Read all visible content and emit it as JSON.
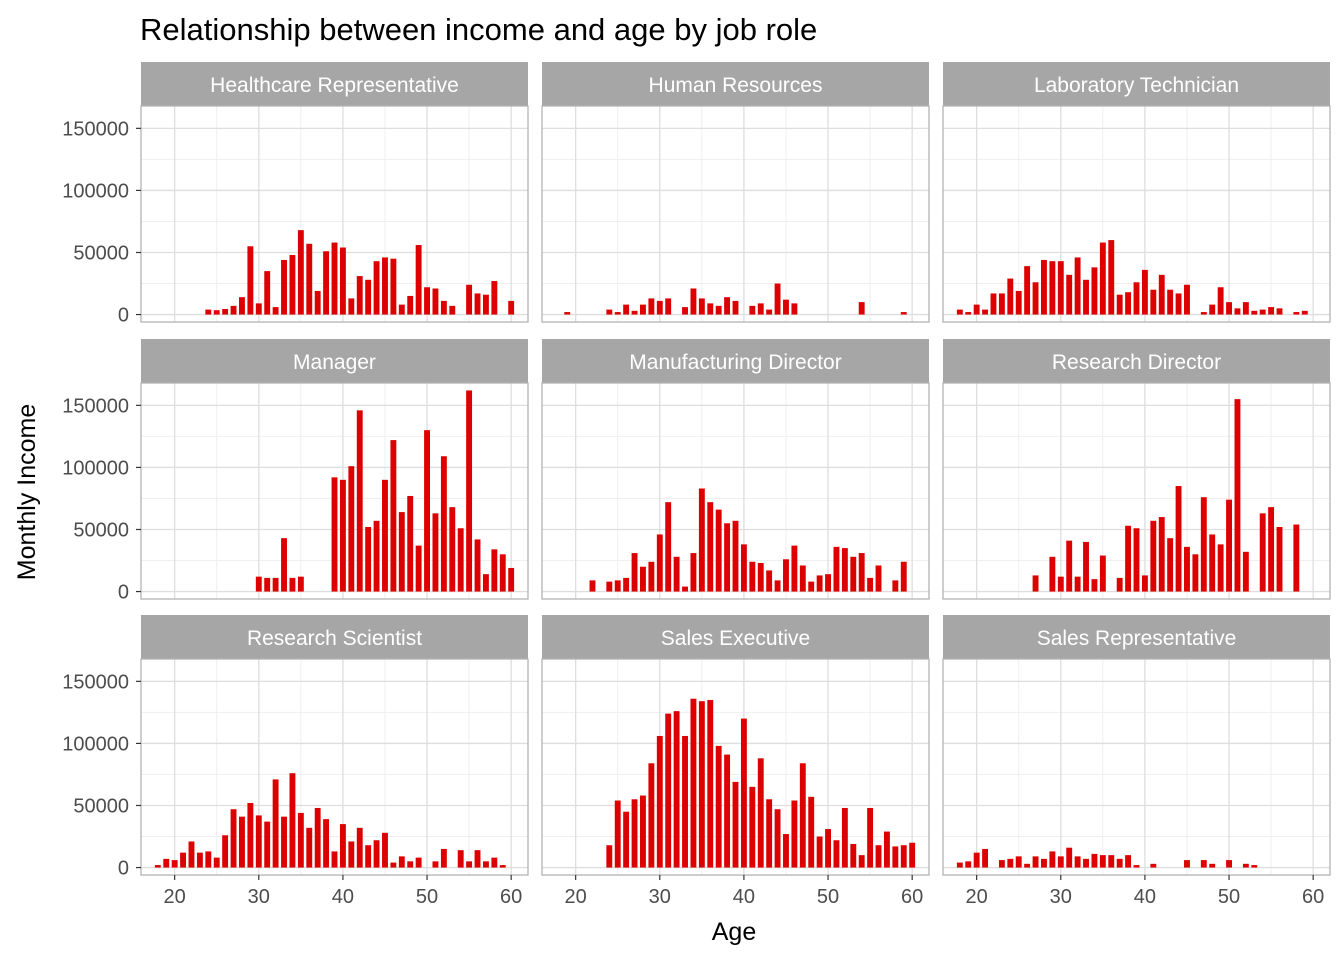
{
  "chart_data": {
    "type": "bar",
    "title": "Relationship between income and age by job role",
    "xlabel": "Age",
    "ylabel": "Monthly Income",
    "xlim": [
      16,
      62
    ],
    "ylim": [
      -6000,
      168000
    ],
    "x_ticks": [
      20,
      30,
      40,
      50,
      60
    ],
    "y_ticks": [
      0,
      50000,
      100000,
      150000
    ],
    "grid": true,
    "facet_layout": {
      "rows": 3,
      "cols": 3,
      "shared_axes": true
    },
    "colors": {
      "bar": "#dd0000",
      "strip": "#a6a6a6",
      "strip_text": "#ffffff",
      "grid_major": "#dedede",
      "grid_minor": "#efefef",
      "panel_border": "#b3b3b3"
    },
    "panels": [
      {
        "name": "Healthcare Representative",
        "points": [
          [
            24,
            4000
          ],
          [
            25,
            3500
          ],
          [
            26,
            4500
          ],
          [
            27,
            7000
          ],
          [
            28,
            14000
          ],
          [
            29,
            55000
          ],
          [
            30,
            9000
          ],
          [
            31,
            35000
          ],
          [
            32,
            6000
          ],
          [
            33,
            44000
          ],
          [
            34,
            48000
          ],
          [
            35,
            68000
          ],
          [
            36,
            57000
          ],
          [
            37,
            19000
          ],
          [
            38,
            51000
          ],
          [
            39,
            58000
          ],
          [
            40,
            54000
          ],
          [
            41,
            13000
          ],
          [
            42,
            31000
          ],
          [
            43,
            28000
          ],
          [
            44,
            43000
          ],
          [
            45,
            46000
          ],
          [
            46,
            45000
          ],
          [
            47,
            8000
          ],
          [
            48,
            15000
          ],
          [
            49,
            56000
          ],
          [
            50,
            22000
          ],
          [
            51,
            21000
          ],
          [
            52,
            11000
          ],
          [
            53,
            7000
          ],
          [
            55,
            24000
          ],
          [
            56,
            17000
          ],
          [
            57,
            16000
          ],
          [
            58,
            27000
          ],
          [
            60,
            11000
          ]
        ]
      },
      {
        "name": "Human Resources",
        "points": [
          [
            19,
            2000
          ],
          [
            24,
            4000
          ],
          [
            25,
            2000
          ],
          [
            26,
            8000
          ],
          [
            27,
            3000
          ],
          [
            28,
            8000
          ],
          [
            29,
            13000
          ],
          [
            30,
            11000
          ],
          [
            31,
            13000
          ],
          [
            33,
            6000
          ],
          [
            34,
            21000
          ],
          [
            35,
            13000
          ],
          [
            36,
            9000
          ],
          [
            37,
            7000
          ],
          [
            38,
            14000
          ],
          [
            39,
            11000
          ],
          [
            41,
            7000
          ],
          [
            42,
            9000
          ],
          [
            43,
            4000
          ],
          [
            44,
            25000
          ],
          [
            45,
            12000
          ],
          [
            46,
            9000
          ],
          [
            54,
            10000
          ],
          [
            59,
            2000
          ]
        ]
      },
      {
        "name": "Laboratory Technician",
        "points": [
          [
            18,
            4000
          ],
          [
            19,
            2000
          ],
          [
            20,
            8000
          ],
          [
            21,
            4000
          ],
          [
            22,
            17000
          ],
          [
            23,
            17000
          ],
          [
            24,
            29000
          ],
          [
            25,
            19000
          ],
          [
            26,
            39000
          ],
          [
            27,
            26000
          ],
          [
            28,
            44000
          ],
          [
            29,
            43000
          ],
          [
            30,
            43000
          ],
          [
            31,
            32000
          ],
          [
            32,
            46000
          ],
          [
            33,
            28000
          ],
          [
            34,
            38000
          ],
          [
            35,
            58000
          ],
          [
            36,
            60000
          ],
          [
            37,
            16000
          ],
          [
            38,
            18000
          ],
          [
            39,
            26000
          ],
          [
            40,
            36000
          ],
          [
            41,
            20000
          ],
          [
            42,
            32000
          ],
          [
            43,
            20000
          ],
          [
            44,
            17000
          ],
          [
            45,
            24000
          ],
          [
            47,
            2000
          ],
          [
            48,
            8000
          ],
          [
            49,
            22000
          ],
          [
            50,
            10000
          ],
          [
            51,
            5000
          ],
          [
            52,
            10000
          ],
          [
            53,
            3000
          ],
          [
            54,
            4000
          ],
          [
            55,
            6000
          ],
          [
            56,
            5000
          ],
          [
            58,
            2000
          ],
          [
            59,
            3000
          ]
        ]
      },
      {
        "name": "Manager",
        "points": [
          [
            30,
            12000
          ],
          [
            31,
            11000
          ],
          [
            32,
            11000
          ],
          [
            33,
            43000
          ],
          [
            34,
            11000
          ],
          [
            35,
            12000
          ],
          [
            39,
            92000
          ],
          [
            40,
            90000
          ],
          [
            41,
            101000
          ],
          [
            42,
            146000
          ],
          [
            43,
            52000
          ],
          [
            44,
            57000
          ],
          [
            45,
            90000
          ],
          [
            46,
            122000
          ],
          [
            47,
            64000
          ],
          [
            48,
            77000
          ],
          [
            49,
            37000
          ],
          [
            50,
            130000
          ],
          [
            51,
            63000
          ],
          [
            52,
            109000
          ],
          [
            53,
            68000
          ],
          [
            54,
            51000
          ],
          [
            55,
            162000
          ],
          [
            56,
            42000
          ],
          [
            57,
            14000
          ],
          [
            58,
            34000
          ],
          [
            59,
            30000
          ],
          [
            60,
            19000
          ]
        ]
      },
      {
        "name": "Manufacturing Director",
        "points": [
          [
            22,
            9000
          ],
          [
            24,
            8000
          ],
          [
            25,
            9000
          ],
          [
            26,
            11000
          ],
          [
            27,
            31000
          ],
          [
            28,
            20000
          ],
          [
            29,
            24000
          ],
          [
            30,
            46000
          ],
          [
            31,
            72000
          ],
          [
            32,
            28000
          ],
          [
            33,
            4000
          ],
          [
            34,
            31000
          ],
          [
            35,
            83000
          ],
          [
            36,
            72000
          ],
          [
            37,
            66000
          ],
          [
            38,
            55000
          ],
          [
            39,
            57000
          ],
          [
            40,
            38000
          ],
          [
            41,
            24000
          ],
          [
            42,
            23000
          ],
          [
            43,
            17000
          ],
          [
            44,
            9000
          ],
          [
            45,
            26000
          ],
          [
            46,
            37000
          ],
          [
            47,
            21000
          ],
          [
            48,
            8000
          ],
          [
            49,
            13000
          ],
          [
            50,
            14000
          ],
          [
            51,
            36000
          ],
          [
            52,
            35000
          ],
          [
            53,
            28000
          ],
          [
            54,
            31000
          ],
          [
            55,
            11000
          ],
          [
            56,
            21000
          ],
          [
            58,
            9000
          ],
          [
            59,
            24000
          ]
        ]
      },
      {
        "name": "Research Director",
        "points": [
          [
            27,
            13000
          ],
          [
            29,
            28000
          ],
          [
            30,
            12000
          ],
          [
            31,
            41000
          ],
          [
            32,
            12000
          ],
          [
            33,
            40000
          ],
          [
            34,
            10000
          ],
          [
            35,
            29000
          ],
          [
            37,
            11000
          ],
          [
            38,
            53000
          ],
          [
            39,
            51000
          ],
          [
            40,
            13000
          ],
          [
            41,
            57000
          ],
          [
            42,
            60000
          ],
          [
            43,
            43000
          ],
          [
            44,
            85000
          ],
          [
            45,
            36000
          ],
          [
            46,
            30000
          ],
          [
            47,
            76000
          ],
          [
            48,
            46000
          ],
          [
            49,
            38000
          ],
          [
            50,
            74000
          ],
          [
            51,
            155000
          ],
          [
            52,
            32000
          ],
          [
            54,
            63000
          ],
          [
            55,
            68000
          ],
          [
            56,
            52000
          ],
          [
            58,
            54000
          ]
        ]
      },
      {
        "name": "Research Scientist",
        "points": [
          [
            18,
            2000
          ],
          [
            19,
            7000
          ],
          [
            20,
            6000
          ],
          [
            21,
            12000
          ],
          [
            22,
            21000
          ],
          [
            23,
            12000
          ],
          [
            24,
            13000
          ],
          [
            25,
            8000
          ],
          [
            26,
            26000
          ],
          [
            27,
            47000
          ],
          [
            28,
            41000
          ],
          [
            29,
            52000
          ],
          [
            30,
            42000
          ],
          [
            31,
            37000
          ],
          [
            32,
            71000
          ],
          [
            33,
            41000
          ],
          [
            34,
            76000
          ],
          [
            35,
            44000
          ],
          [
            36,
            32000
          ],
          [
            37,
            48000
          ],
          [
            38,
            39000
          ],
          [
            39,
            13000
          ],
          [
            40,
            35000
          ],
          [
            41,
            21000
          ],
          [
            42,
            32000
          ],
          [
            43,
            18000
          ],
          [
            44,
            22000
          ],
          [
            45,
            28000
          ],
          [
            46,
            4000
          ],
          [
            47,
            9000
          ],
          [
            48,
            5000
          ],
          [
            49,
            8000
          ],
          [
            51,
            5000
          ],
          [
            52,
            15000
          ],
          [
            54,
            14000
          ],
          [
            55,
            5000
          ],
          [
            56,
            14000
          ],
          [
            57,
            5000
          ],
          [
            58,
            8000
          ],
          [
            59,
            2000
          ]
        ]
      },
      {
        "name": "Sales Executive",
        "points": [
          [
            24,
            18000
          ],
          [
            25,
            54000
          ],
          [
            26,
            45000
          ],
          [
            27,
            55000
          ],
          [
            28,
            58000
          ],
          [
            29,
            84000
          ],
          [
            30,
            106000
          ],
          [
            31,
            124000
          ],
          [
            32,
            126000
          ],
          [
            33,
            106000
          ],
          [
            34,
            136000
          ],
          [
            35,
            134000
          ],
          [
            36,
            135000
          ],
          [
            37,
            98000
          ],
          [
            38,
            91000
          ],
          [
            39,
            69000
          ],
          [
            40,
            120000
          ],
          [
            41,
            65000
          ],
          [
            42,
            88000
          ],
          [
            43,
            55000
          ],
          [
            44,
            47000
          ],
          [
            45,
            27000
          ],
          [
            46,
            54000
          ],
          [
            47,
            84000
          ],
          [
            48,
            57000
          ],
          [
            49,
            25000
          ],
          [
            50,
            31000
          ],
          [
            51,
            22000
          ],
          [
            52,
            48000
          ],
          [
            53,
            19000
          ],
          [
            54,
            10000
          ],
          [
            55,
            48000
          ],
          [
            56,
            18000
          ],
          [
            57,
            29000
          ],
          [
            58,
            17000
          ],
          [
            59,
            18000
          ],
          [
            60,
            20000
          ]
        ]
      },
      {
        "name": "Sales Representative",
        "points": [
          [
            18,
            4000
          ],
          [
            19,
            5000
          ],
          [
            20,
            12000
          ],
          [
            21,
            15000
          ],
          [
            23,
            6000
          ],
          [
            24,
            7000
          ],
          [
            25,
            9000
          ],
          [
            26,
            3000
          ],
          [
            27,
            9000
          ],
          [
            28,
            7000
          ],
          [
            29,
            13000
          ],
          [
            30,
            9000
          ],
          [
            31,
            16000
          ],
          [
            32,
            9000
          ],
          [
            33,
            7000
          ],
          [
            34,
            11000
          ],
          [
            35,
            10000
          ],
          [
            36,
            10000
          ],
          [
            37,
            7000
          ],
          [
            38,
            10000
          ],
          [
            39,
            2000
          ],
          [
            41,
            3000
          ],
          [
            45,
            6000
          ],
          [
            47,
            6000
          ],
          [
            48,
            3000
          ],
          [
            50,
            6000
          ],
          [
            52,
            3000
          ],
          [
            53,
            2000
          ]
        ]
      }
    ]
  }
}
